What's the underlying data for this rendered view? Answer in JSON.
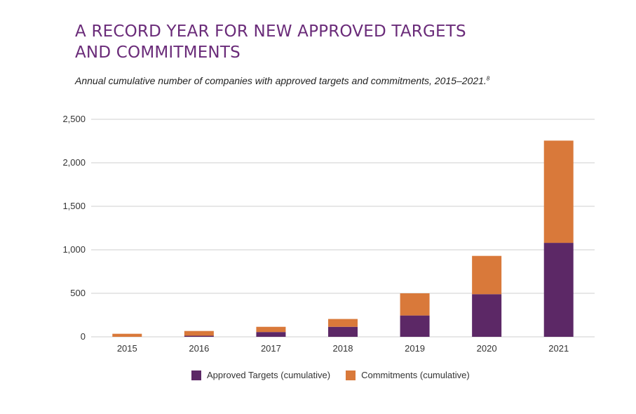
{
  "title_line1": "A RECORD YEAR FOR NEW APPROVED TARGETS",
  "title_line2": "AND COMMITMENTS",
  "subtitle": "Annual cumulative number of companies with approved targets and commitments, 2015–2021.",
  "subtitle_footnote": "8",
  "colors": {
    "approved": "#5c2866",
    "commitments": "#d9793a",
    "grid": "#cfcfcf"
  },
  "chart_data": {
    "type": "bar",
    "stacked": true,
    "categories": [
      "2015",
      "2016",
      "2017",
      "2018",
      "2019",
      "2020",
      "2021"
    ],
    "series": [
      {
        "name": "Approved Targets (cumulative)",
        "values": [
          0,
          12,
          55,
          115,
          245,
          490,
          1080
        ]
      },
      {
        "name": "Commitments (cumulative)",
        "values": [
          35,
          55,
          60,
          90,
          255,
          440,
          1175
        ]
      }
    ],
    "yticks": [
      "2,500",
      "2,000",
      "1,500",
      "1,000",
      "500",
      "0"
    ],
    "ytick_values": [
      2500,
      2000,
      1500,
      1000,
      500,
      0
    ],
    "ylim": [
      0,
      2500
    ],
    "grid": true,
    "legend_position": "bottom"
  }
}
